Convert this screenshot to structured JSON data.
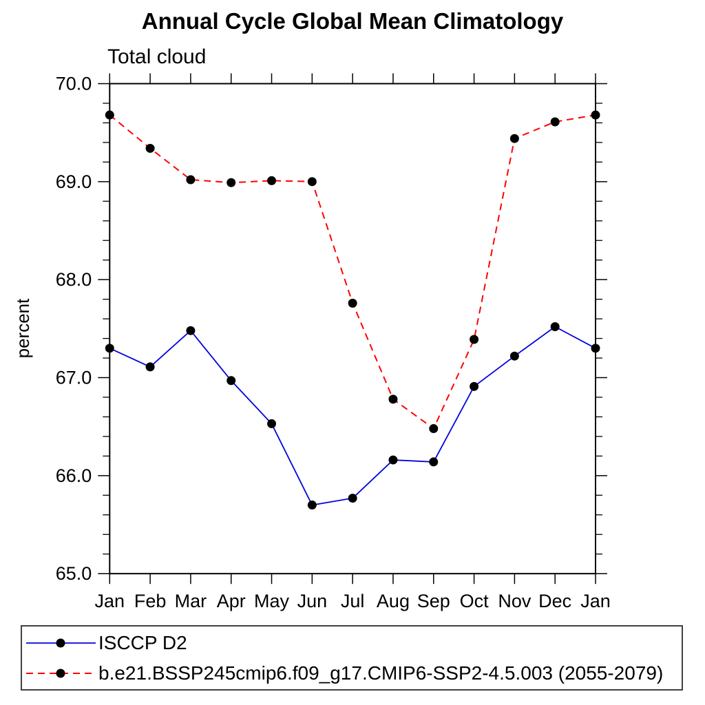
{
  "header": {
    "title": "Annual Cycle Global Mean Climatology",
    "subtitle": "Total cloud"
  },
  "chart_data": {
    "type": "line",
    "title": "Annual Cycle Global Mean Climatology",
    "subtitle": "Total cloud",
    "xlabel": "",
    "ylabel": "percent",
    "categories": [
      "Jan",
      "Feb",
      "Mar",
      "Apr",
      "May",
      "Jun",
      "Jul",
      "Aug",
      "Sep",
      "Oct",
      "Nov",
      "Dec",
      "Jan"
    ],
    "ylim": [
      65.0,
      70.0
    ],
    "ytick_major": 1.0,
    "ytick_minor": 0.2,
    "ytick_labels": [
      "65.0",
      "66.0",
      "67.0",
      "68.0",
      "69.0",
      "70.0"
    ],
    "grid": false,
    "legend_position": "bottom",
    "series": [
      {
        "name": "ISCCP D2",
        "color": "#0000dd",
        "line_style": "solid",
        "marker": "filled-circle",
        "marker_color": "#000000",
        "values": [
          67.3,
          67.11,
          67.48,
          66.97,
          66.53,
          65.7,
          65.77,
          66.16,
          66.14,
          66.91,
          67.22,
          67.52,
          67.3
        ]
      },
      {
        "name": "b.e21.BSSP245cmip6.f09_g17.CMIP6-SSP2-4.5.003 (2055-2079)",
        "color": "#ff0000",
        "line_style": "dashed",
        "marker": "filled-circle",
        "marker_color": "#000000",
        "values": [
          69.68,
          69.34,
          69.02,
          68.99,
          69.01,
          69.0,
          67.76,
          66.78,
          66.48,
          67.39,
          69.44,
          69.61,
          69.68
        ]
      }
    ]
  },
  "colors": {
    "axis": "#000000",
    "text": "#000000",
    "background": "#ffffff",
    "legend_border": "#404040",
    "series_blue": "#0000dd",
    "series_red": "#ff0000",
    "marker": "#000000"
  }
}
